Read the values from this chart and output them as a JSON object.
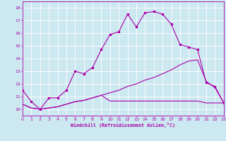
{
  "title": "",
  "xlabel": "Windchill (Refroidissement éolien,°C)",
  "ylabel": "",
  "background_color": "#cce8f0",
  "line_color": "#aa00aa",
  "grid_color": "#ffffff",
  "xmin": 0,
  "xmax": 23,
  "ymin": 9.5,
  "ymax": 18.5,
  "yticks": [
    10,
    11,
    12,
    13,
    14,
    15,
    16,
    17,
    18
  ],
  "xticks": [
    0,
    1,
    2,
    3,
    4,
    5,
    6,
    7,
    8,
    9,
    10,
    11,
    12,
    13,
    14,
    15,
    16,
    17,
    18,
    19,
    20,
    21,
    22,
    23
  ],
  "series1_x": [
    0,
    1,
    2,
    3,
    4,
    5,
    6,
    7,
    8,
    9,
    10,
    11,
    12,
    13,
    14,
    15,
    16,
    17,
    18,
    19,
    20,
    21,
    22,
    23
  ],
  "series1_y": [
    11.5,
    10.6,
    10.0,
    10.9,
    10.9,
    11.5,
    13.0,
    12.8,
    13.3,
    14.7,
    15.9,
    16.1,
    17.5,
    16.5,
    17.6,
    17.7,
    17.5,
    16.7,
    15.1,
    14.9,
    14.7,
    12.1,
    11.8,
    10.5
  ],
  "series2_x": [
    0,
    1,
    2,
    3,
    4,
    5,
    6,
    7,
    8,
    9,
    10,
    11,
    12,
    13,
    14,
    15,
    16,
    17,
    18,
    19,
    20,
    21,
    22,
    23
  ],
  "series2_y": [
    10.4,
    10.1,
    10.0,
    10.1,
    10.2,
    10.4,
    10.6,
    10.7,
    10.9,
    11.1,
    11.3,
    11.5,
    11.8,
    12.0,
    12.3,
    12.5,
    12.8,
    13.1,
    13.5,
    13.8,
    13.9,
    12.2,
    11.7,
    10.5
  ],
  "series3_x": [
    0,
    1,
    2,
    3,
    4,
    5,
    6,
    7,
    8,
    9,
    10,
    11,
    12,
    13,
    14,
    15,
    16,
    17,
    18,
    19,
    20,
    21,
    22,
    23
  ],
  "series3_y": [
    10.4,
    10.1,
    10.0,
    10.1,
    10.2,
    10.4,
    10.6,
    10.7,
    10.9,
    11.1,
    10.65,
    10.65,
    10.65,
    10.65,
    10.65,
    10.65,
    10.65,
    10.65,
    10.65,
    10.65,
    10.65,
    10.5,
    10.5,
    10.5
  ]
}
